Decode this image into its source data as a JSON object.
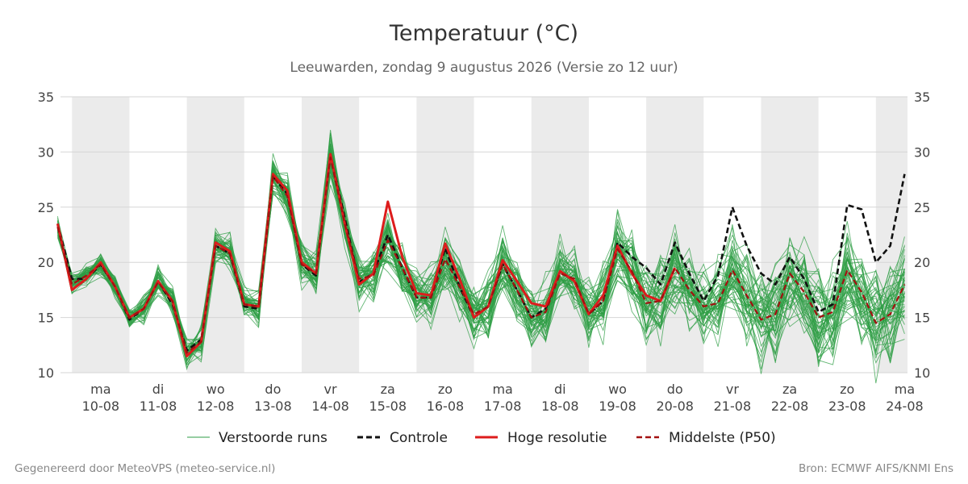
{
  "chart_data": {
    "type": "line",
    "title": "Temperatuur (°C)",
    "subtitle": "Leeuwarden, zondag  9 augustus 2026 (Versie zo 12 uur)",
    "ylim": [
      10,
      35
    ],
    "yticks": [
      10,
      15,
      20,
      25,
      30,
      35
    ],
    "xlim": [
      -0.2,
      14.55
    ],
    "grid": true,
    "legend_position": "bottom",
    "day_ticks": [
      {
        "day": "ma",
        "date": "10-08"
      },
      {
        "day": "di",
        "date": "11-08"
      },
      {
        "day": "wo",
        "date": "12-08"
      },
      {
        "day": "do",
        "date": "13-08"
      },
      {
        "day": "vr",
        "date": "14-08"
      },
      {
        "day": "za",
        "date": "15-08"
      },
      {
        "day": "zo",
        "date": "16-08"
      },
      {
        "day": "ma",
        "date": "17-08"
      },
      {
        "day": "di",
        "date": "18-08"
      },
      {
        "day": "wo",
        "date": "19-08"
      },
      {
        "day": "do",
        "date": "20-08"
      },
      {
        "day": "vr",
        "date": "21-08"
      },
      {
        "day": "za",
        "date": "22-08"
      },
      {
        "day": "zo",
        "date": "23-08"
      },
      {
        "day": "ma",
        "date": "24-08"
      }
    ],
    "series": [
      {
        "name": "Controle",
        "color": "#111111",
        "style": "dashed",
        "x": [
          -0.25,
          0,
          0.25,
          0.5,
          0.75,
          1,
          1.25,
          1.5,
          1.75,
          2,
          2.25,
          2.5,
          2.75,
          3,
          3.25,
          3.5,
          3.75,
          4,
          4.25,
          4.5,
          4.75,
          5,
          5.25,
          5.5,
          5.75,
          6,
          6.25,
          6.5,
          6.75,
          7,
          7.25,
          7.5,
          7.75,
          8,
          8.25,
          8.5,
          8.75,
          9,
          9.25,
          9.5,
          9.75,
          10,
          10.25,
          10.5,
          10.75,
          11,
          11.25,
          11.5,
          11.75,
          12,
          12.25,
          12.5,
          12.75,
          13,
          13.25,
          13.5,
          13.75,
          14,
          14.25,
          14.5
        ],
        "y": [
          23.5,
          18.5,
          18.5,
          19.8,
          17.8,
          14.8,
          15.8,
          18.3,
          16.2,
          12.0,
          13.0,
          21.5,
          20.8,
          16.0,
          15.8,
          27.8,
          26.2,
          19.8,
          18.8,
          29.8,
          24.0,
          18.2,
          19.0,
          22.5,
          19.5,
          16.8,
          16.8,
          21.3,
          17.8,
          15.0,
          16.0,
          19.8,
          17.5,
          15.0,
          15.8,
          19.2,
          18.3,
          15.3,
          16.5,
          21.8,
          20.5,
          19.5,
          18.0,
          21.8,
          19.0,
          16.5,
          18.8,
          25.0,
          21.5,
          19.0,
          18.0,
          20.5,
          18.5,
          15.5,
          16.2,
          25.2,
          24.8,
          20.0,
          21.5,
          28.0
        ]
      },
      {
        "name": "Hoge resolutie",
        "color": "#dd1c1c",
        "style": "solid",
        "x": [
          -0.25,
          0,
          0.25,
          0.5,
          0.75,
          1,
          1.25,
          1.5,
          1.75,
          2,
          2.25,
          2.5,
          2.75,
          3,
          3.25,
          3.5,
          3.75,
          4,
          4.25,
          4.5,
          4.75,
          5,
          5.25,
          5.5,
          5.75,
          6,
          6.25,
          6.5,
          6.75,
          7,
          7.25,
          7.5,
          7.75,
          8,
          8.25,
          8.5,
          8.75,
          9,
          9.25,
          9.5,
          9.75,
          10,
          10.25,
          10.5
        ],
        "y": [
          23.5,
          17.5,
          18.5,
          20.0,
          17.8,
          15.0,
          15.8,
          18.3,
          16.5,
          11.5,
          12.8,
          21.8,
          21.0,
          16.2,
          16.0,
          28.0,
          26.5,
          20.0,
          19.0,
          29.8,
          23.5,
          18.0,
          19.0,
          25.5,
          20.5,
          17.2,
          17.0,
          21.7,
          18.5,
          15.0,
          16.0,
          20.2,
          18.3,
          16.3,
          16.0,
          19.2,
          18.3,
          15.3,
          17.0,
          21.5,
          19.0,
          17.0,
          16.5,
          19.5
        ]
      },
      {
        "name": "Middelste (P50)",
        "color": "#a31010",
        "style": "dashed",
        "x": [
          -0.25,
          0,
          0.25,
          0.5,
          0.75,
          1,
          1.25,
          1.5,
          1.75,
          2,
          2.25,
          2.5,
          2.75,
          3,
          3.25,
          3.5,
          3.75,
          4,
          4.25,
          4.5,
          4.75,
          5,
          5.25,
          5.5,
          5.75,
          6,
          6.25,
          6.5,
          6.75,
          7,
          7.25,
          7.5,
          7.75,
          8,
          8.25,
          8.5,
          8.75,
          9,
          9.25,
          9.5,
          9.75,
          10,
          10.25,
          10.5,
          10.75,
          11,
          11.25,
          11.5,
          11.75,
          12,
          12.25,
          12.5,
          12.75,
          13,
          13.25,
          13.5,
          13.75,
          14,
          14.25,
          14.5
        ],
        "y": [
          23.2,
          18.0,
          18.8,
          19.8,
          17.8,
          15.0,
          15.8,
          18.2,
          16.5,
          11.8,
          12.8,
          21.5,
          20.8,
          16.2,
          16.0,
          27.8,
          26.0,
          19.8,
          19.0,
          29.5,
          23.5,
          18.5,
          18.8,
          22.0,
          19.5,
          16.8,
          16.8,
          20.3,
          17.8,
          15.3,
          16.0,
          19.8,
          17.5,
          15.0,
          15.5,
          19.0,
          18.5,
          15.3,
          16.5,
          21.2,
          19.2,
          16.3,
          16.5,
          19.5,
          17.5,
          16.0,
          16.3,
          19.3,
          17.0,
          14.8,
          15.3,
          19.0,
          17.3,
          15.0,
          15.5,
          19.3,
          17.3,
          14.5,
          15.3,
          18.0
        ]
      }
    ],
    "ensemble": {
      "name": "Verstoorde runs",
      "color": "#2e9e44",
      "members": 50
    }
  },
  "legend": {
    "ensemble_label": "Verstoorde runs",
    "control_label": "Controle",
    "hires_label": "Hoge resolutie",
    "p50_label": "Middelste (P50)"
  },
  "footer": {
    "left": "Gegenereerd door MeteoVPS (meteo-service.nl)",
    "right": "Bron: ECMWF AIFS/KNMI Ens"
  }
}
